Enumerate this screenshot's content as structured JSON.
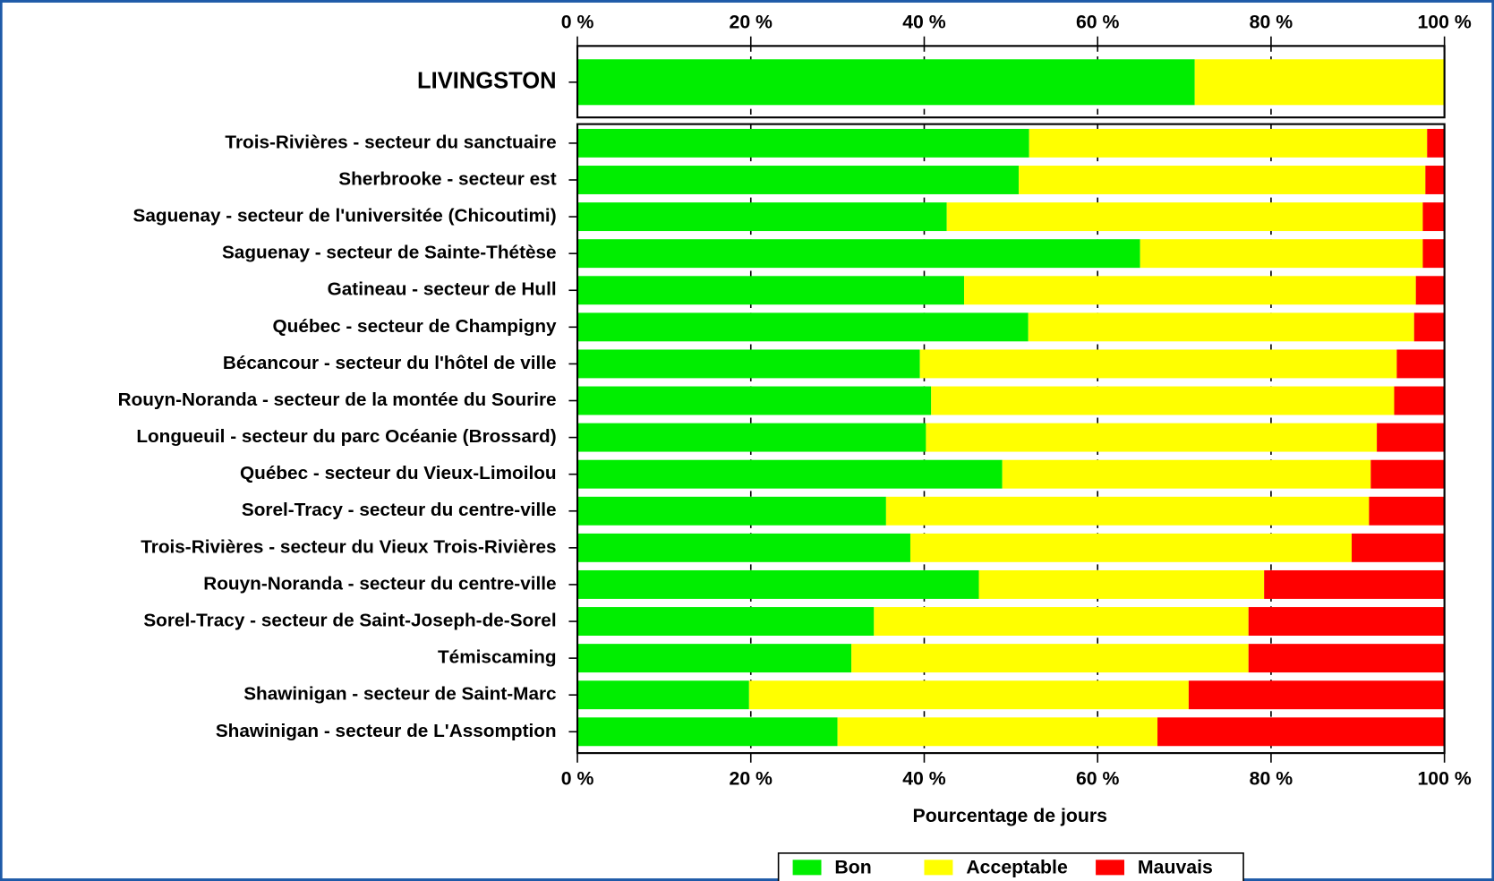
{
  "chart_data": {
    "type": "bar",
    "orientation": "horizontal",
    "stacked": true,
    "xlabel": "Pourcentage de jours",
    "xlim": [
      0,
      100
    ],
    "xticks": [
      {
        "value": 0,
        "label": "0 %"
      },
      {
        "value": 20,
        "label": "20 %"
      },
      {
        "value": 40,
        "label": "40 %"
      },
      {
        "value": 60,
        "label": "60 %"
      },
      {
        "value": 80,
        "label": "80 %"
      },
      {
        "value": 100,
        "label": "100 %"
      }
    ],
    "grid": true,
    "legend": "bottom",
    "series": [
      {
        "name": "Bon",
        "color": "#00ee00"
      },
      {
        "name": "Acceptable",
        "color": "#ffff00"
      },
      {
        "name": "Mauvais",
        "color": "#ff0000"
      }
    ],
    "panels": [
      {
        "categories": [
          "LIVINGSTON"
        ],
        "values": [
          [
            71.2
          ],
          [
            28.8
          ],
          [
            0
          ]
        ]
      },
      {
        "categories": [
          "Trois-Rivières - secteur du sanctuaire",
          "Sherbrooke - secteur est",
          "Saguenay - secteur de l'universitée (Chicoutimi)",
          "Saguenay - secteur de Sainte-Thétèse",
          "Gatineau - secteur de Hull",
          "Québec - secteur de Champigny",
          "Bécancour - secteur du l'hôtel de ville",
          "Rouyn-Noranda - secteur de la montée du Sourire",
          "Longueuil - secteur du parc Océanie (Brossard)",
          "Québec - secteur du Vieux-Limoilou",
          "Sorel-Tracy - secteur du centre-ville",
          "Trois-Rivières - secteur du Vieux Trois-Rivières",
          "Rouyn-Noranda - secteur du centre-ville",
          "Sorel-Tracy - secteur de Saint-Joseph-de-Sorel",
          "Témiscaming",
          "Shawinigan - secteur de Saint-Marc",
          "Shawinigan - secteur de L'Assomption"
        ],
        "values": [
          [
            52.1,
            50.9,
            42.6,
            64.9,
            44.6,
            52.0,
            39.5,
            40.8,
            40.2,
            49.0,
            35.6,
            38.4,
            46.3,
            34.2,
            31.6,
            19.8,
            30.0
          ],
          [
            45.9,
            46.9,
            54.9,
            32.6,
            52.1,
            44.5,
            55.0,
            53.4,
            52.0,
            42.5,
            55.7,
            50.9,
            32.9,
            43.2,
            45.8,
            50.7,
            36.9
          ],
          [
            2.0,
            2.2,
            2.5,
            2.5,
            3.3,
            3.5,
            5.5,
            5.8,
            7.8,
            8.5,
            8.7,
            10.7,
            20.8,
            22.6,
            22.6,
            29.5,
            33.1
          ]
        ]
      }
    ]
  }
}
